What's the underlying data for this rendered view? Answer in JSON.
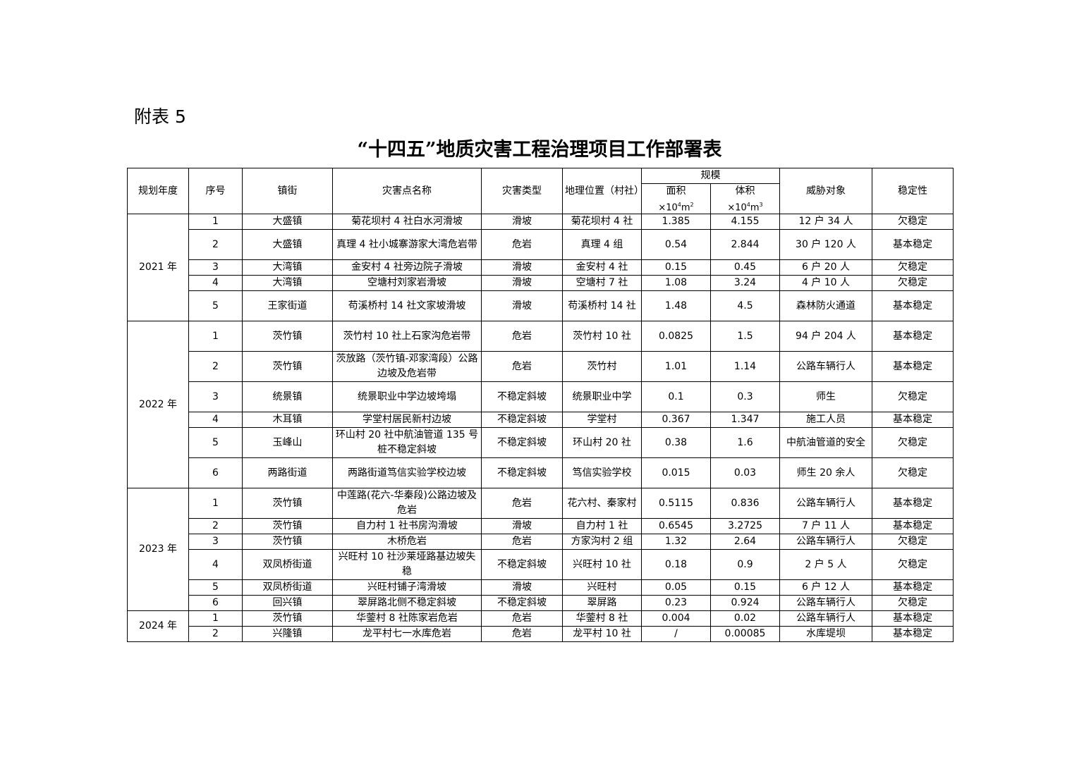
{
  "annex_label": "附表 5",
  "title": "“十四五”地质灾害工程治理项目工作部署表",
  "headers": {
    "year": "规划年度",
    "no": "序号",
    "town": "镇街",
    "name": "灾害点名称",
    "type": "灾害类型",
    "location": "地理位置（村社）",
    "scale": "规模",
    "area": "面积",
    "area_unit": "×10",
    "area_exp": "4",
    "area_unit2": "m",
    "area_exp2": "2",
    "volume": "体积",
    "vol_unit": "×10",
    "vol_exp": "4",
    "vol_unit2": "m",
    "vol_exp2": "3",
    "threat": "威胁对象",
    "stability": "稳定性"
  },
  "groups": [
    {
      "year": "2021 年",
      "rows": [
        [
          "1",
          "大盛镇",
          "菊花坝村 4 社白水河滑坡",
          "滑坡",
          "菊花坝村 4 社",
          "1.385",
          "4.155",
          "12 户 34 人",
          "欠稳定",
          1
        ],
        [
          "2",
          "大盛镇",
          "真理 4 社小城寨游家大湾危岩带",
          "危岩",
          "真理 4 组",
          "0.54",
          "2.844",
          "30 户 120 人",
          "基本稳定",
          2
        ],
        [
          "3",
          "大湾镇",
          "金安村 4 社旁边院子滑坡",
          "滑坡",
          "金安村 4 社",
          "0.15",
          "0.45",
          "6 户 20 人",
          "欠稳定",
          1
        ],
        [
          "4",
          "大湾镇",
          "空塘村刘家岩滑坡",
          "滑坡",
          "空塘村 7 社",
          "1.08",
          "3.24",
          "4 户 10 人",
          "欠稳定",
          1
        ],
        [
          "5",
          "王家街道",
          "苟溪桥村 14 社文家坡滑坡",
          "滑坡",
          "苟溪桥村 14 社",
          "1.48",
          "4.5",
          "森林防火通道",
          "基本稳定",
          2
        ]
      ]
    },
    {
      "year": "2022 年",
      "rows": [
        [
          "1",
          "茨竹镇",
          "茨竹村 10 社上石家沟危岩带",
          "危岩",
          "茨竹村 10 社",
          "0.0825",
          "1.5",
          "94 户 204 人",
          "基本稳定",
          2
        ],
        [
          "2",
          "茨竹镇",
          "茨放路（茨竹镇-邓家湾段）公路边坡及危岩带",
          "危岩",
          "茨竹村",
          "1.01",
          "1.14",
          "公路车辆行人",
          "基本稳定",
          2
        ],
        [
          "3",
          "统景镇",
          "统景职业中学边坡垮塌",
          "不稳定斜坡",
          "统景职业中学",
          "0.1",
          "0.3",
          "师生",
          "欠稳定",
          2
        ],
        [
          "4",
          "木耳镇",
          "学堂村居民新村边坡",
          "不稳定斜坡",
          "学堂村",
          "0.367",
          "1.347",
          "施工人员",
          "基本稳定",
          1
        ],
        [
          "5",
          "玉峰山",
          "环山村 20 社中航油管道 135 号桩不稳定斜坡",
          "不稳定斜坡",
          "环山村 20 社",
          "0.38",
          "1.6",
          "中航油管道的安全",
          "欠稳定",
          2
        ],
        [
          "6",
          "两路街道",
          "两路街道笃信实验学校边坡",
          "不稳定斜坡",
          "笃信实验学校",
          "0.015",
          "0.03",
          "师生 20 余人",
          "欠稳定",
          2
        ]
      ]
    },
    {
      "year": "2023 年",
      "rows": [
        [
          "1",
          "茨竹镇",
          "中莲路(花六-华秦段)公路边坡及危岩",
          "危岩",
          "花六村、秦家村",
          "0.5115",
          "0.836",
          "公路车辆行人",
          "基本稳定",
          2
        ],
        [
          "2",
          "茨竹镇",
          "自力村 1 社书房沟滑坡",
          "滑坡",
          "自力村 1 社",
          "0.6545",
          "3.2725",
          "7 户 11 人",
          "基本稳定",
          1
        ],
        [
          "3",
          "茨竹镇",
          "木桥危岩",
          "危岩",
          "方家沟村 2 组",
          "1.32",
          "2.64",
          "公路车辆行人",
          "欠稳定",
          1
        ],
        [
          "4",
          "双凤桥街道",
          "兴旺村 10 社沙莱垭路基边坡失稳",
          "不稳定斜坡",
          "兴旺村 10 社",
          "0.18",
          "0.9",
          "2 户 5 人",
          "欠稳定",
          2
        ],
        [
          "5",
          "双凤桥街道",
          "兴旺村铺子湾滑坡",
          "滑坡",
          "兴旺村",
          "0.05",
          "0.15",
          "6 户 12 人",
          "基本稳定",
          1
        ],
        [
          "6",
          "回兴镇",
          "翠屏路北侧不稳定斜坡",
          "不稳定斜坡",
          "翠屏路",
          "0.23",
          "0.924",
          "公路车辆行人",
          "欠稳定",
          1
        ]
      ]
    },
    {
      "year": "2024 年",
      "rows": [
        [
          "1",
          "茨竹镇",
          "华蓥村 8 社陈家岩危岩",
          "危岩",
          "华蓥村 8 社",
          "0.004",
          "0.02",
          "公路车辆行人",
          "基本稳定",
          1
        ],
        [
          "2",
          "兴隆镇",
          "龙平村七一水库危岩",
          "危岩",
          "龙平村 10 社",
          "/",
          "0.00085",
          "水库堤坝",
          "基本稳定",
          1
        ]
      ]
    }
  ]
}
